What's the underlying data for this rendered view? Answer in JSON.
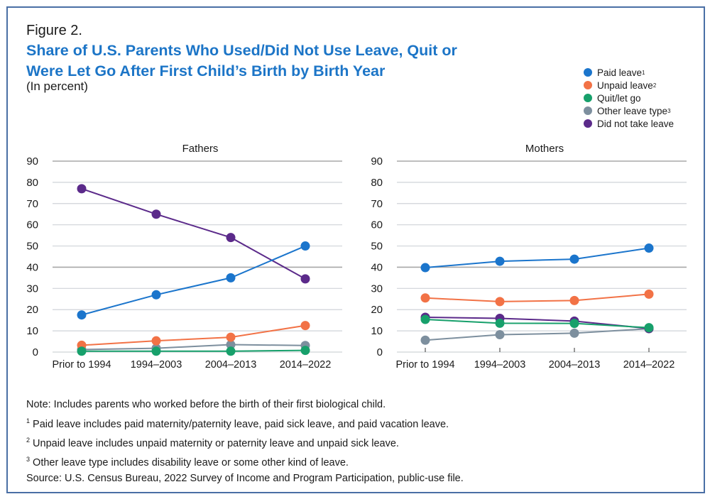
{
  "figure_label": "Figure 2.",
  "title": "Share of U.S. Parents Who Used/Did Not Use Leave, Quit or Were Let Go After First Child's Birth by Birth Year",
  "title_line1": "Share of U.S. Parents Who Used/Did Not Use Leave, Quit or",
  "title_line2": "Were Let Go After First Child’s Birth by Birth Year",
  "subtitle": "(In percent)",
  "legend": [
    {
      "name": "Paid leave",
      "sup": "1",
      "color": "#1b75cc"
    },
    {
      "name": "Unpaid leave",
      "sup": "2",
      "color": "#f27246"
    },
    {
      "name": "Quit/let go",
      "sup": "",
      "color": "#17a06b"
    },
    {
      "name": "Other leave type",
      "sup": "3",
      "color": "#7d8f9e"
    },
    {
      "name": "Did not take leave",
      "sup": "",
      "color": "#5b2a8a"
    }
  ],
  "notes": {
    "note": "Note: Includes parents who worked before the birth of their first biological child.",
    "fn1": "Paid leave includes paid maternity/paternity leave, paid sick leave, and paid vacation leave.",
    "fn2": "Unpaid leave includes unpaid maternity or paternity leave and unpaid sick leave.",
    "fn3": "Other leave type includes disability leave or some other kind of leave.",
    "source": "Source: U.S. Census Bureau, 2022 Survey of Income and Program Participation, public-use file.",
    "sup1": "1",
    "sup2": "2",
    "sup3": "3"
  },
  "chart_data": [
    {
      "type": "line",
      "title": "Fathers",
      "categories": [
        "Prior to 1994",
        "1994–2003",
        "2004–2013",
        "2014–2022"
      ],
      "ylim": [
        0,
        90
      ],
      "yticks": [
        0,
        10,
        20,
        30,
        40,
        50,
        60,
        70,
        80,
        90
      ],
      "xlabel": "",
      "ylabel": "",
      "grid": true,
      "series": [
        {
          "name": "Did not take leave",
          "color": "#5b2a8a",
          "values": [
            77,
            65,
            54,
            34.5
          ]
        },
        {
          "name": "Paid leave",
          "color": "#1b75cc",
          "values": [
            17.5,
            27,
            35,
            50
          ]
        },
        {
          "name": "Other leave type",
          "color": "#7d8f9e",
          "values": [
            1.2,
            1.8,
            3.5,
            3.1
          ]
        },
        {
          "name": "Unpaid leave",
          "color": "#f27246",
          "values": [
            3.2,
            5.3,
            7,
            12.5
          ]
        },
        {
          "name": "Quit/let go",
          "color": "#17a06b",
          "values": [
            0.4,
            0.4,
            0.4,
            0.8
          ]
        }
      ]
    },
    {
      "type": "line",
      "title": "Mothers",
      "categories": [
        "Prior to 1994",
        "1994–2003",
        "2004–2013",
        "2014–2022"
      ],
      "ylim": [
        0,
        90
      ],
      "yticks": [
        0,
        10,
        20,
        30,
        40,
        50,
        60,
        70,
        80,
        90
      ],
      "xlabel": "",
      "ylabel": "",
      "grid": true,
      "series": [
        {
          "name": "Paid leave",
          "color": "#1b75cc",
          "values": [
            39.8,
            42.8,
            43.8,
            49
          ]
        },
        {
          "name": "Unpaid leave",
          "color": "#f27246",
          "values": [
            25.5,
            23.8,
            24.3,
            27.3
          ]
        },
        {
          "name": "Other leave type",
          "color": "#7d8f9e",
          "values": [
            5.6,
            8.2,
            8.9,
            11
          ]
        },
        {
          "name": "Did not take leave",
          "color": "#5b2a8a",
          "values": [
            16.4,
            15.9,
            14.6,
            11.1
          ]
        },
        {
          "name": "Quit/let go",
          "color": "#17a06b",
          "values": [
            15.4,
            13.6,
            13.5,
            11.5
          ]
        }
      ]
    }
  ]
}
